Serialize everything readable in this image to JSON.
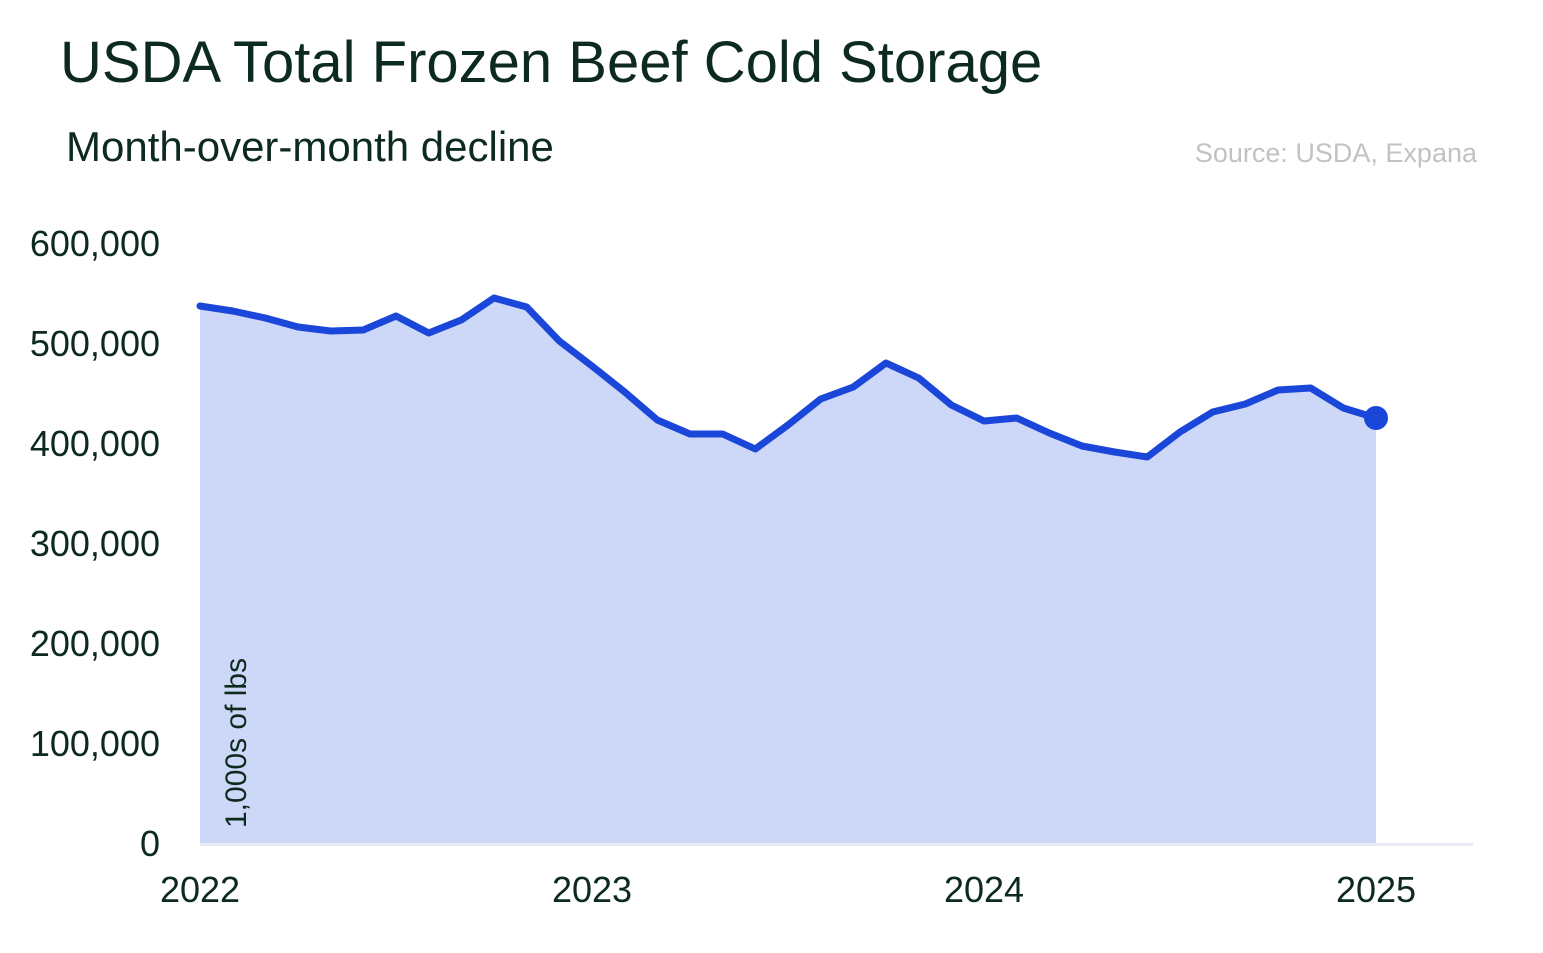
{
  "title": "USDA Total Frozen Beef Cold Storage",
  "subtitle": "Month-over-month decline",
  "source": "Source: USDA, Expana",
  "colors": {
    "line": "#1a47d9",
    "fill": "#cdd8f8",
    "axis": "#e8ecf2",
    "text": "#0d2a1e",
    "source": "#c2c2c2"
  },
  "chart_data": {
    "type": "area",
    "ylabel": "1,000s of lbs",
    "ylim": [
      0,
      600000
    ],
    "y_ticks": [
      "0",
      "100,000",
      "200,000",
      "300,000",
      "400,000",
      "500,000",
      "600,000"
    ],
    "x_ticks": [
      "2022",
      "2023",
      "2024",
      "2025"
    ],
    "grid": false,
    "legend": "none",
    "series": [
      {
        "x": [
          "2022-01",
          "2022-02",
          "2022-03",
          "2022-04",
          "2022-05",
          "2022-06",
          "2022-07",
          "2022-08",
          "2022-09",
          "2022-10",
          "2022-11",
          "2022-12",
          "2023-01",
          "2023-02",
          "2023-03",
          "2023-04",
          "2023-05",
          "2023-06",
          "2023-07",
          "2023-08",
          "2023-09",
          "2023-10",
          "2023-11",
          "2023-12",
          "2024-01",
          "2024-02",
          "2024-03",
          "2024-04",
          "2024-05",
          "2024-06",
          "2024-07",
          "2024-08",
          "2024-09",
          "2024-10",
          "2024-11",
          "2024-12",
          "2025-01"
        ],
        "values": [
          537000,
          532000,
          525000,
          516000,
          512000,
          513000,
          527000,
          510000,
          523000,
          545000,
          536000,
          502000,
          477000,
          451000,
          423000,
          409000,
          409000,
          394000,
          418000,
          444000,
          456000,
          480000,
          465000,
          438000,
          422000,
          425000,
          410000,
          397000,
          391000,
          386000,
          411000,
          431000,
          439000,
          453000,
          455000,
          435000,
          425000
        ]
      }
    ]
  }
}
